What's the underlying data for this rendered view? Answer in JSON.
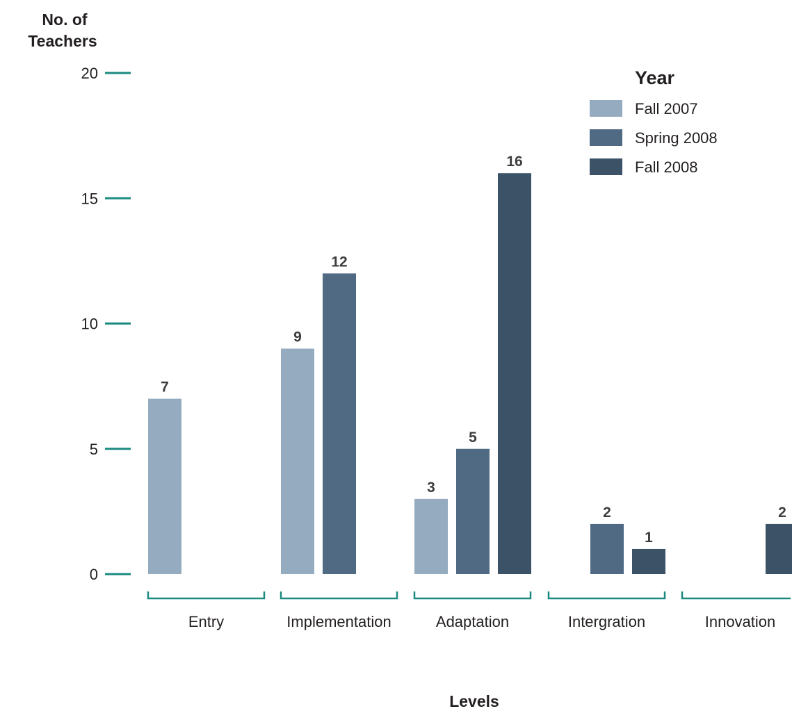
{
  "chart_data": {
    "type": "bar",
    "title": "",
    "ylabel": "No. of Teachers",
    "xlabel": "Levels",
    "ylim": [
      0,
      20
    ],
    "yticks": [
      0,
      5,
      10,
      15,
      20
    ],
    "legend_title": "Year",
    "legend_position": "top-right",
    "categories": [
      "Entry",
      "Implementation",
      "Adaptation",
      "Intergration",
      "Innovation"
    ],
    "series": [
      {
        "name": "Fall 2007",
        "color": "#95abbf",
        "values": [
          7,
          9,
          3,
          null,
          null
        ]
      },
      {
        "name": "Spring 2008",
        "color": "#516a84",
        "values": [
          null,
          12,
          5,
          2,
          null
        ]
      },
      {
        "name": "Fall 2008",
        "color": "#3c5266",
        "values": [
          null,
          null,
          16,
          1,
          2
        ]
      }
    ],
    "axis_color": "#1a8a80"
  }
}
